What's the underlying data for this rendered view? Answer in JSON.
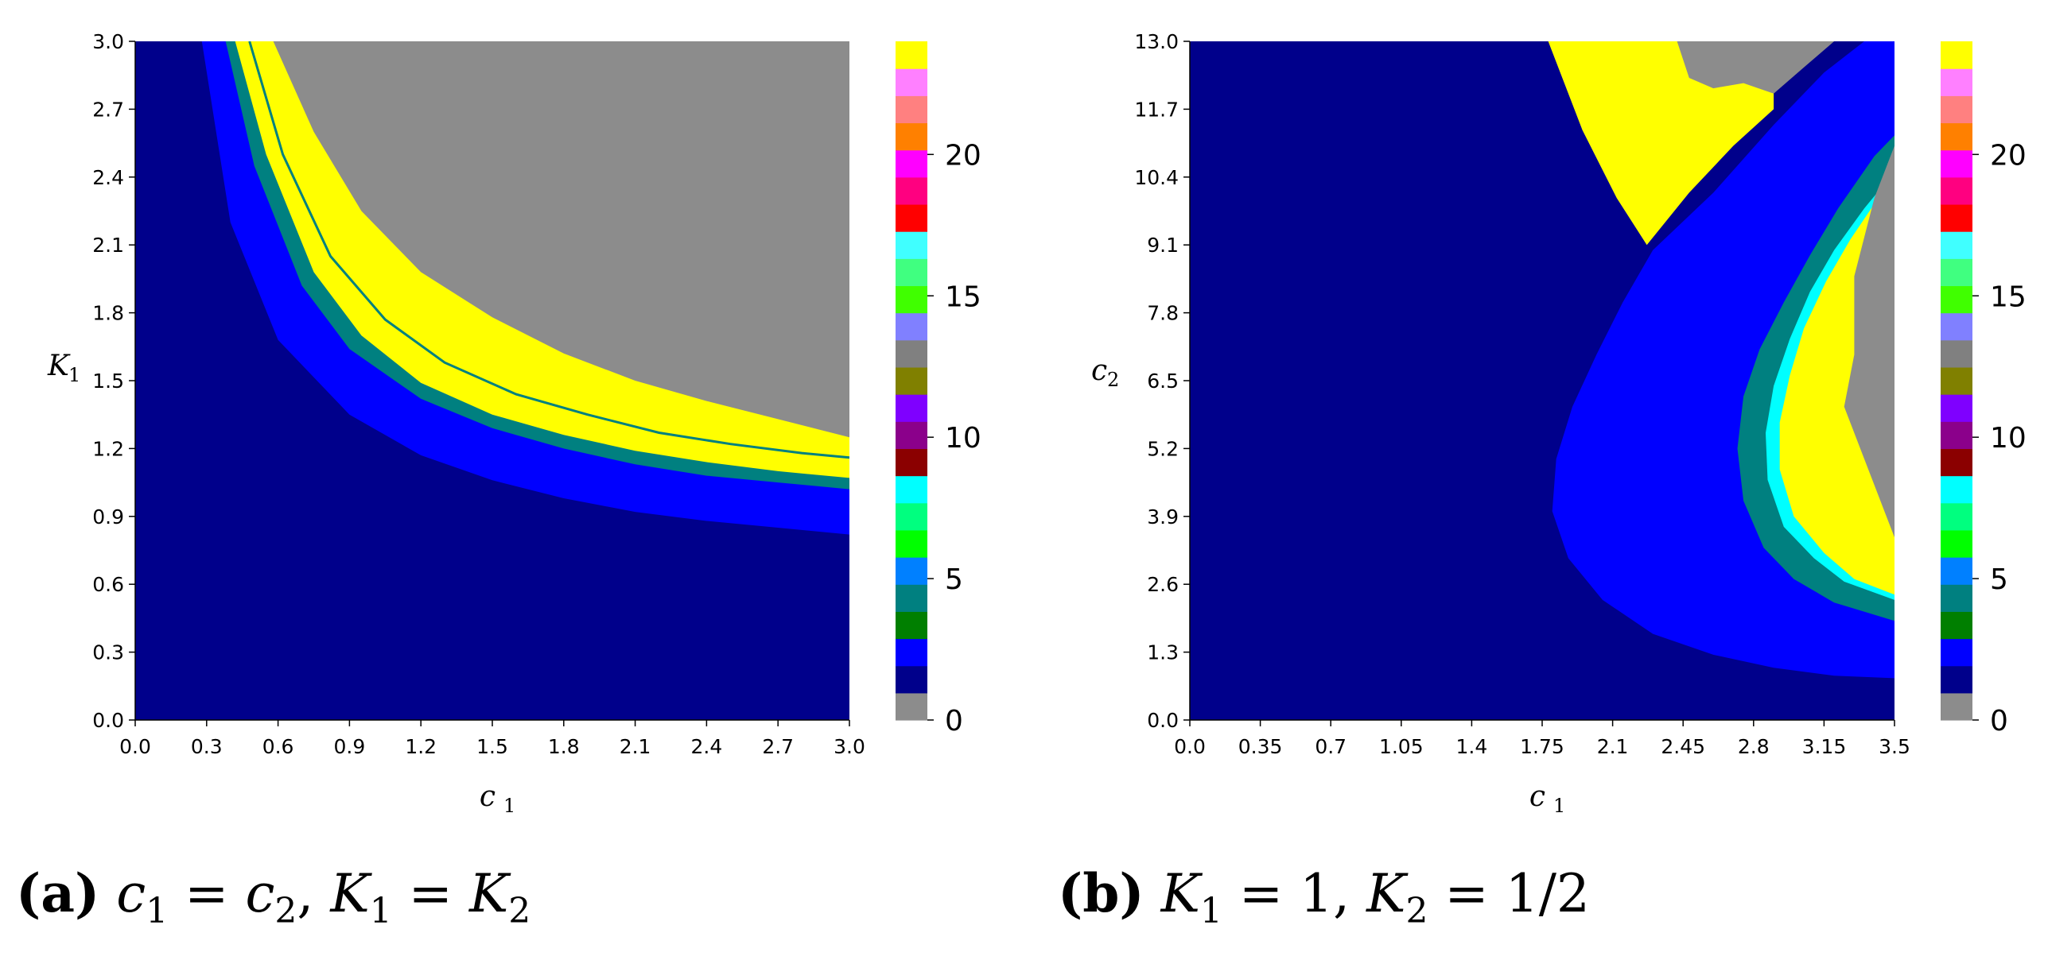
{
  "chart_data": [
    {
      "type": "heatmap",
      "panel": "a",
      "caption": {
        "label": "(a)",
        "text": "c_1 = c_2, K_1 = K_2"
      },
      "xlabel": "c_1",
      "ylabel": "K_1",
      "xlim": [
        0.0,
        3.0
      ],
      "ylim": [
        0.0,
        3.0
      ],
      "xticks": [
        "0.0",
        "0.3",
        "0.6",
        "0.9",
        "1.2",
        "1.5",
        "1.8",
        "2.1",
        "2.4",
        "2.7",
        "3.0"
      ],
      "yticks": [
        "0.0",
        "0.3",
        "0.6",
        "0.9",
        "1.2",
        "1.5",
        "1.8",
        "2.1",
        "2.4",
        "2.7",
        "3.0"
      ],
      "regions": [
        {
          "value": 2,
          "color": "#00008b",
          "description": "below blue band"
        },
        {
          "value": 3,
          "color": "#0000ff",
          "lower_curve": [
            [
              0.28,
              3.0
            ],
            [
              0.4,
              2.2
            ],
            [
              0.6,
              1.68
            ],
            [
              0.9,
              1.35
            ],
            [
              1.2,
              1.17
            ],
            [
              1.5,
              1.06
            ],
            [
              1.8,
              0.98
            ],
            [
              2.1,
              0.92
            ],
            [
              2.4,
              0.88
            ],
            [
              2.7,
              0.85
            ],
            [
              3.0,
              0.82
            ]
          ]
        },
        {
          "value": 5,
          "color": "#008080",
          "lower_curve": [
            [
              0.38,
              3.0
            ],
            [
              0.5,
              2.45
            ],
            [
              0.7,
              1.92
            ],
            [
              0.9,
              1.64
            ],
            [
              1.2,
              1.42
            ],
            [
              1.5,
              1.29
            ],
            [
              1.8,
              1.2
            ],
            [
              2.1,
              1.13
            ],
            [
              2.4,
              1.08
            ],
            [
              2.7,
              1.05
            ],
            [
              3.0,
              1.02
            ]
          ]
        },
        {
          "value": 24,
          "color": "#ffff00",
          "lower_curve": [
            [
              0.42,
              3.0
            ],
            [
              0.55,
              2.5
            ],
            [
              0.75,
              1.98
            ],
            [
              0.95,
              1.7
            ],
            [
              1.2,
              1.49
            ],
            [
              1.5,
              1.35
            ],
            [
              1.8,
              1.26
            ],
            [
              2.1,
              1.19
            ],
            [
              2.4,
              1.14
            ],
            [
              2.7,
              1.1
            ],
            [
              3.0,
              1.07
            ]
          ]
        },
        {
          "value": 0,
          "color": "#8c8c8c",
          "lower_curve": [
            [
              0.58,
              3.0
            ],
            [
              0.75,
              2.6
            ],
            [
              0.95,
              2.25
            ],
            [
              1.2,
              1.98
            ],
            [
              1.5,
              1.78
            ],
            [
              1.8,
              1.62
            ],
            [
              2.1,
              1.5
            ],
            [
              2.4,
              1.41
            ],
            [
              2.7,
              1.33
            ],
            [
              3.0,
              1.25
            ]
          ]
        }
      ],
      "colorbar": {
        "ticks": [
          "0",
          "5",
          "10",
          "15",
          "20"
        ],
        "min": 0,
        "max": 24
      }
    },
    {
      "type": "heatmap",
      "panel": "b",
      "caption": {
        "label": "(b)",
        "text": "K_1 = 1, K_2 = 1/2"
      },
      "xlabel": "c_1",
      "ylabel": "c_2",
      "xlim": [
        0.0,
        3.5
      ],
      "ylim": [
        0.0,
        13.0
      ],
      "xticks": [
        "0.0",
        "0.35",
        "0.7",
        "1.05",
        "1.4",
        "1.75",
        "2.1",
        "2.45",
        "2.8",
        "3.15",
        "3.5"
      ],
      "yticks": [
        "0.0",
        "1.3",
        "2.6",
        "3.9",
        "5.2",
        "6.5",
        "7.8",
        "9.1",
        "10.4",
        "11.7",
        "13.0"
      ],
      "regions": [
        {
          "value": 2,
          "color": "#00008b",
          "description": "background"
        },
        {
          "value": 3,
          "color": "#0000ff",
          "boundary": [
            [
              3.5,
              0.8
            ],
            [
              3.2,
              0.85
            ],
            [
              2.9,
              1.0
            ],
            [
              2.6,
              1.25
            ],
            [
              2.3,
              1.65
            ],
            [
              2.05,
              2.3
            ],
            [
              1.88,
              3.1
            ],
            [
              1.8,
              4.0
            ],
            [
              1.82,
              5.0
            ],
            [
              1.9,
              6.0
            ],
            [
              2.02,
              7.0
            ],
            [
              2.15,
              8.0
            ],
            [
              2.3,
              9.0
            ],
            [
              2.6,
              10.1
            ],
            [
              2.9,
              11.4
            ],
            [
              3.15,
              12.4
            ],
            [
              3.35,
              13.0
            ],
            [
              3.5,
              13.0
            ]
          ]
        },
        {
          "value": 5,
          "color": "#008080",
          "boundary": [
            [
              3.5,
              1.9
            ],
            [
              3.2,
              2.25
            ],
            [
              3.0,
              2.7
            ],
            [
              2.85,
              3.3
            ],
            [
              2.75,
              4.2
            ],
            [
              2.72,
              5.2
            ],
            [
              2.75,
              6.2
            ],
            [
              2.83,
              7.1
            ],
            [
              2.95,
              8.0
            ],
            [
              3.08,
              8.9
            ],
            [
              3.22,
              9.8
            ],
            [
              3.4,
              10.8
            ],
            [
              3.5,
              11.2
            ]
          ]
        },
        {
          "value": 8,
          "color": "#00ffff",
          "boundary": [
            [
              3.5,
              2.3
            ],
            [
              3.25,
              2.65
            ],
            [
              3.1,
              3.1
            ],
            [
              2.95,
              3.7
            ],
            [
              2.87,
              4.6
            ],
            [
              2.86,
              5.5
            ],
            [
              2.9,
              6.4
            ],
            [
              2.98,
              7.3
            ],
            [
              3.08,
              8.2
            ],
            [
              3.2,
              9.0
            ],
            [
              3.35,
              9.8
            ],
            [
              3.5,
              10.5
            ]
          ]
        },
        {
          "value": 24,
          "color": "#ffff00",
          "boundary": [
            [
              3.5,
              2.4
            ],
            [
              3.3,
              2.7
            ],
            [
              3.15,
              3.2
            ],
            [
              3.0,
              3.9
            ],
            [
              2.93,
              4.8
            ],
            [
              2.93,
              5.7
            ],
            [
              2.98,
              6.6
            ],
            [
              3.05,
              7.5
            ],
            [
              3.16,
              8.4
            ],
            [
              3.28,
              9.2
            ],
            [
              3.42,
              10.0
            ],
            [
              3.5,
              10.4
            ]
          ]
        },
        {
          "value": 0,
          "color": "#8c8c8c",
          "boundary": [
            [
              3.5,
              11.0
            ],
            [
              3.4,
              10.0
            ],
            [
              3.3,
              8.5
            ],
            [
              3.3,
              7.0
            ],
            [
              3.25,
              6.0
            ],
            [
              3.35,
              5.0
            ],
            [
              3.45,
              4.0
            ],
            [
              3.5,
              3.5
            ]
          ]
        },
        {
          "value": 24,
          "color": "#ffff00",
          "boundary": [
            [
              1.78,
              13.0
            ],
            [
              1.95,
              11.3
            ],
            [
              2.12,
              10.0
            ],
            [
              2.27,
              9.1
            ],
            [
              2.48,
              10.1
            ],
            [
              2.7,
              11.0
            ],
            [
              2.9,
              11.7
            ],
            [
              2.9,
              13.0
            ]
          ]
        },
        {
          "value": 0,
          "color": "#8c8c8c",
          "boundary": [
            [
              2.42,
              13.0
            ],
            [
              2.48,
              12.3
            ],
            [
              2.6,
              12.1
            ],
            [
              2.75,
              12.2
            ],
            [
              2.9,
              12.0
            ],
            [
              3.05,
              12.5
            ],
            [
              3.2,
              13.0
            ]
          ]
        }
      ],
      "colorbar": {
        "ticks": [
          "0",
          "5",
          "10",
          "15",
          "20"
        ],
        "min": 0,
        "max": 24
      }
    }
  ],
  "colormap": [
    "#8c8c8c",
    "#00008b",
    "#0000ff",
    "#007f00",
    "#008080",
    "#0080ff",
    "#00ff00",
    "#00ff7f",
    "#00ffff",
    "#8b0000",
    "#8b008b",
    "#7f00ff",
    "#808000",
    "#808080",
    "#8080ff",
    "#40ff00",
    "#40ff80",
    "#40ffff",
    "#ff0000",
    "#ff0080",
    "#ff00ff",
    "#ff8000",
    "#ff8080",
    "#ff80ff",
    "#ffff00"
  ]
}
